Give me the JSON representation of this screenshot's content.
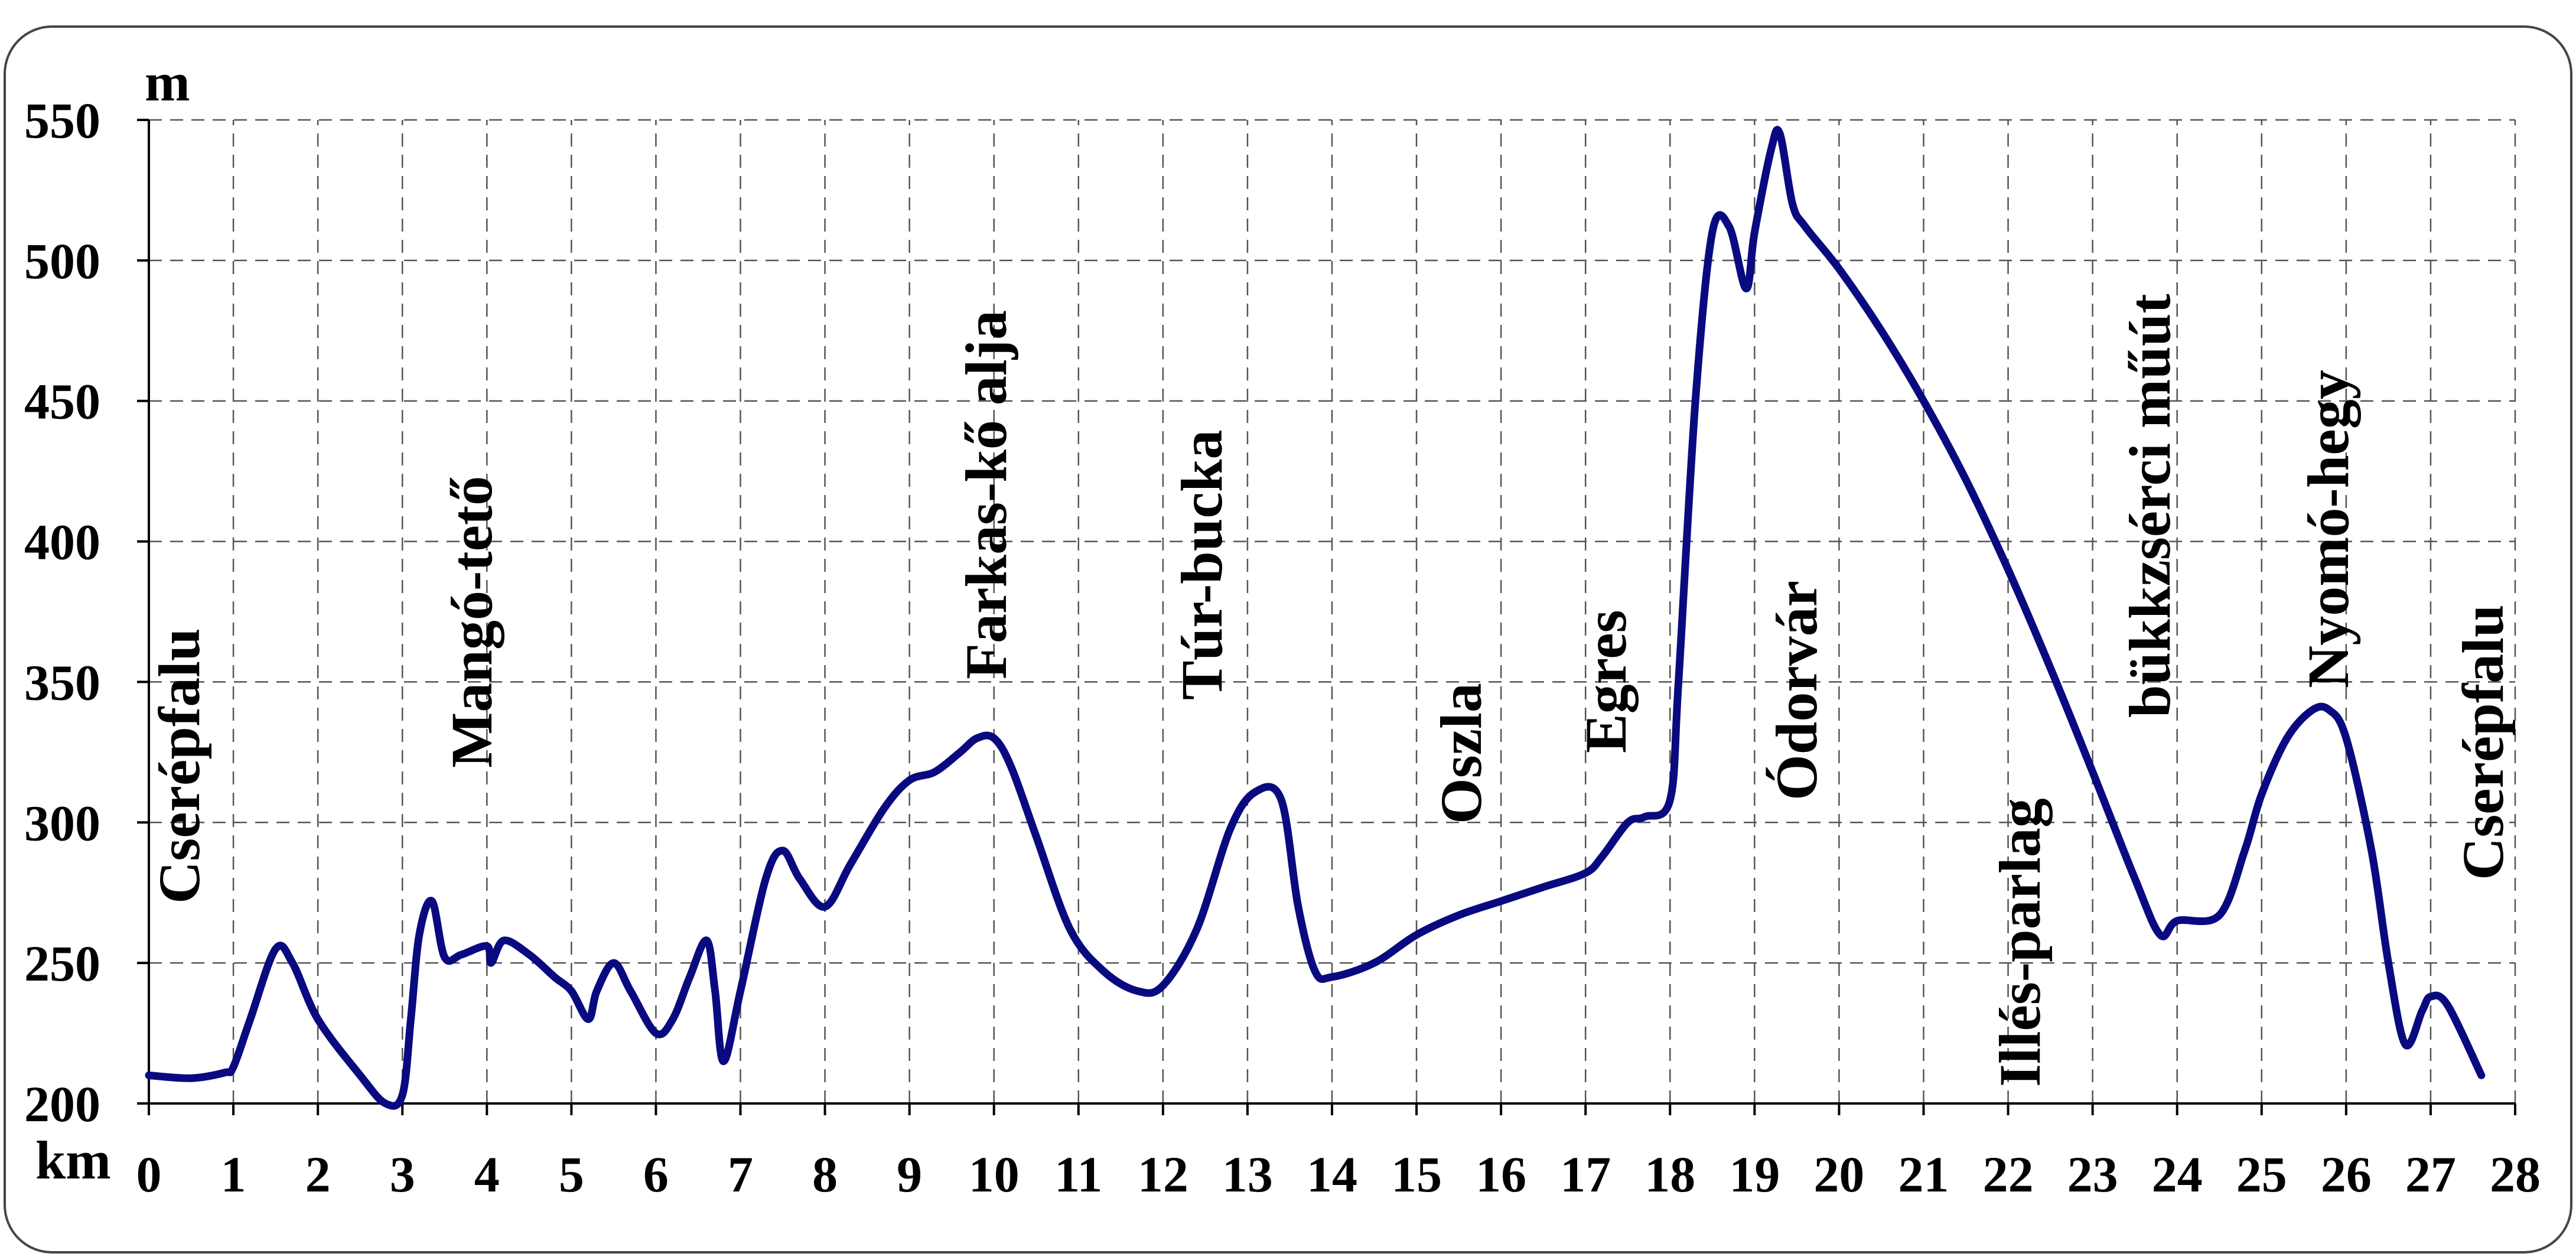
{
  "chart_data": {
    "type": "line",
    "title": "",
    "xlabel": "km",
    "ylabel": "m",
    "xlim": [
      0,
      28
    ],
    "ylim": [
      200,
      550
    ],
    "x_ticks": [
      "0",
      "1",
      "2",
      "3",
      "4",
      "5",
      "6",
      "7",
      "8",
      "9",
      "10",
      "11",
      "12",
      "13",
      "14",
      "15",
      "16",
      "17",
      "18",
      "19",
      "20",
      "21",
      "22",
      "23",
      "24",
      "25",
      "26",
      "27",
      "28"
    ],
    "y_ticks": [
      "200",
      "250",
      "300",
      "350",
      "400",
      "450",
      "500",
      "550"
    ],
    "grid": true,
    "line_color": "#0a0a80",
    "series": [
      {
        "x": [
          0,
          0.5,
          0.9,
          1.0,
          1.2,
          1.5,
          1.7,
          2.0,
          2.5,
          2.8,
          3.0,
          3.1,
          3.2,
          3.35,
          3.5,
          3.7,
          4.0,
          4.05,
          4.2,
          4.5,
          4.8,
          5.0,
          5.2,
          5.3,
          5.5,
          5.7,
          6.0,
          6.2,
          6.4,
          6.6,
          6.7,
          6.8,
          7.0,
          7.3,
          7.5,
          7.7,
          8.0,
          8.3,
          8.7,
          9.0,
          9.3,
          9.6,
          9.8,
          10.0,
          10.2,
          10.5,
          10.9,
          11.3,
          11.7,
          12.0,
          12.4,
          12.8,
          13.1,
          13.4,
          13.6,
          13.8,
          14.0,
          14.5,
          15.0,
          15.5,
          16.0,
          16.5,
          17.0,
          17.2,
          17.5,
          17.7,
          18.0,
          18.1,
          18.3,
          18.5,
          18.7,
          18.9,
          19.0,
          19.2,
          19.3,
          19.45,
          19.6,
          20.0,
          20.5,
          21.0,
          21.5,
          22.0,
          22.5,
          23.0,
          23.5,
          23.8,
          24.0,
          24.5,
          24.8,
          25.0,
          25.3,
          25.6,
          25.8,
          26.0,
          26.3,
          26.5,
          26.7,
          26.9,
          27.0,
          27.2,
          27.6
        ],
        "y": [
          210,
          209,
          211,
          213,
          230,
          255,
          250,
          230,
          210,
          200,
          203,
          230,
          260,
          272,
          252,
          253,
          256,
          250,
          258,
          253,
          245,
          240,
          230,
          240,
          250,
          240,
          225,
          230,
          245,
          258,
          240,
          215,
          240,
          280,
          290,
          280,
          270,
          285,
          305,
          315,
          318,
          325,
          330,
          330,
          320,
          295,
          262,
          247,
          240,
          242,
          262,
          298,
          311,
          308,
          270,
          247,
          245,
          250,
          260,
          267,
          272,
          277,
          282,
          288,
          300,
          302,
          308,
          350,
          450,
          510,
          512,
          490,
          510,
          540,
          545,
          520,
          512,
          497,
          475,
          450,
          422,
          390,
          355,
          318,
          280,
          260,
          265,
          267,
          290,
          310,
          330,
          340,
          340,
          330,
          290,
          250,
          221,
          233,
          238,
          235,
          210
        ]
      }
    ],
    "annotations": [
      "Cserépfalu",
      "Mangó-tető",
      "Farkas-kő alja",
      "Túr-bucka",
      "Oszla",
      "Egres",
      "Ódorvár",
      "Illés-parlag",
      "bükkzsérci műút",
      "Nyomó-hegy",
      "Cserépfalu"
    ]
  }
}
